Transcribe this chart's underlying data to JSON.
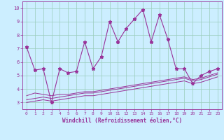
{
  "xlabel": "Windchill (Refroidissement éolien,°C)",
  "bg_color": "#cceeff",
  "line_color": "#993399",
  "grid_color": "#99ccbb",
  "ylim": [
    2.5,
    10.5
  ],
  "xlim": [
    -0.5,
    23.5
  ],
  "yticks": [
    3,
    4,
    5,
    6,
    7,
    8,
    9,
    10
  ],
  "xticks": [
    0,
    1,
    2,
    3,
    4,
    5,
    6,
    7,
    8,
    9,
    10,
    11,
    12,
    13,
    14,
    15,
    16,
    17,
    18,
    19,
    20,
    21,
    22,
    23
  ],
  "series": [
    [
      7.1,
      5.4,
      5.5,
      3.0,
      5.5,
      5.2,
      5.3,
      7.5,
      5.5,
      6.4,
      9.0,
      7.5,
      8.5,
      9.2,
      9.9,
      7.5,
      9.5,
      7.7,
      5.5,
      5.5,
      4.4,
      5.0,
      5.3,
      5.5
    ],
    [
      3.5,
      3.7,
      3.6,
      3.5,
      3.6,
      3.6,
      3.7,
      3.8,
      3.8,
      3.9,
      4.0,
      4.1,
      4.2,
      4.3,
      4.4,
      4.5,
      4.6,
      4.7,
      4.8,
      4.9,
      4.7,
      4.8,
      5.0,
      5.2
    ],
    [
      3.2,
      3.3,
      3.4,
      3.3,
      3.4,
      3.5,
      3.6,
      3.7,
      3.7,
      3.8,
      3.9,
      4.0,
      4.1,
      4.2,
      4.3,
      4.4,
      4.5,
      4.6,
      4.7,
      4.8,
      4.6,
      4.7,
      4.9,
      5.1
    ],
    [
      3.0,
      3.1,
      3.2,
      3.1,
      3.2,
      3.3,
      3.4,
      3.5,
      3.5,
      3.6,
      3.7,
      3.8,
      3.9,
      4.0,
      4.1,
      4.2,
      4.3,
      4.4,
      4.5,
      4.6,
      4.4,
      4.5,
      4.7,
      4.9
    ]
  ]
}
